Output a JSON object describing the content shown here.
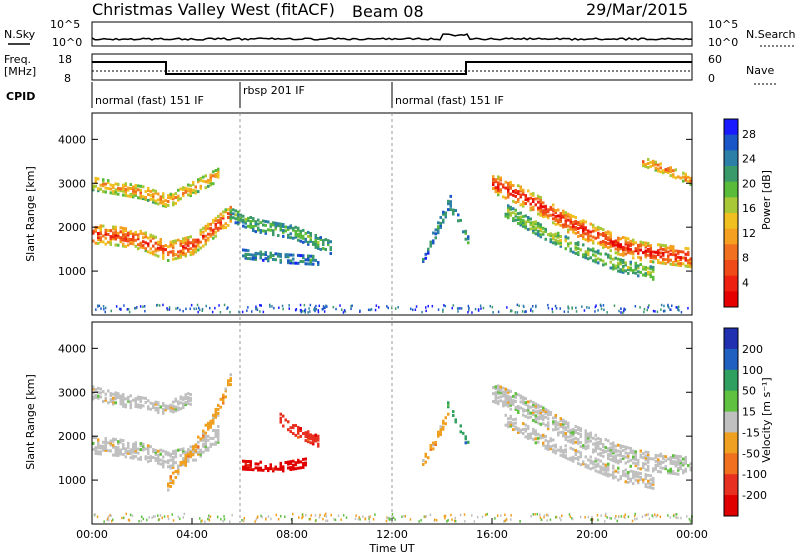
{
  "header": {
    "title": "Christmas Valley West (fitACF)",
    "beam": "Beam 08",
    "date": "29/Mar/2015"
  },
  "top_panels": {
    "noise": {
      "left_label": "N.Sky",
      "right_label": "N.Search",
      "ticks_left": [
        "10^5",
        "10^0"
      ],
      "ticks_right": [
        "10^5",
        "10^0"
      ]
    },
    "freq": {
      "left_label_1": "Freq.",
      "left_label_2": "[MHz]",
      "right_label": "Nave",
      "ticks_left": [
        "18",
        "8"
      ],
      "ticks_right": [
        "60",
        "0"
      ]
    },
    "cpid": {
      "label": "CPID",
      "segments": [
        {
          "label": "normal (fast) 151 IF",
          "start_h": 0.0
        },
        {
          "label": "rbsp 201 IF",
          "start_h": 6.0
        },
        {
          "label": "normal (fast) 151 IF",
          "start_h": 12.0
        }
      ]
    }
  },
  "chart_data": [
    {
      "type": "heatmap",
      "name": "power",
      "ylabel": "Slant Range [km]",
      "yticks": [
        1000,
        2000,
        3000,
        4000
      ],
      "ylim": [
        0,
        4600
      ],
      "xlim": [
        0,
        24
      ],
      "colorbar": {
        "label": "Power [dB]",
        "ticks": [
          "4",
          "8",
          "12",
          "16",
          "20",
          "24",
          "28"
        ],
        "colors": [
          "#1a1aff",
          "#1a56c8",
          "#2c7fa6",
          "#3a9a6a",
          "#5aba3a",
          "#a8c838",
          "#f0c020",
          "#f5a020",
          "#f07020",
          "#f04a18",
          "#ee2010",
          "#e60000"
        ]
      },
      "bands": [
        {
          "desc": "morning E/F band",
          "points": [
            [
              0,
              1850
            ],
            [
              1,
              1800
            ],
            [
              2,
              1700
            ],
            [
              3,
              1450
            ],
            [
              4,
              1600
            ],
            [
              5,
              2050
            ],
            [
              5.5,
              2300
            ]
          ],
          "width": 420,
          "level": 0.9
        },
        {
          "desc": "morning upper band",
          "points": [
            [
              0,
              3000
            ],
            [
              1,
              2900
            ],
            [
              2,
              2800
            ],
            [
              3,
              2600
            ],
            [
              4,
              2900
            ],
            [
              5,
              3200
            ]
          ],
          "width": 300,
          "level": 0.7
        },
        {
          "desc": "pre-noon patches",
          "points": [
            [
              5.5,
              2300
            ],
            [
              6.5,
              2050
            ],
            [
              8,
              1900
            ],
            [
              9.5,
              1550
            ]
          ],
          "width": 300,
          "level": 0.35
        },
        {
          "desc": "low patches",
          "points": [
            [
              6.0,
              1400
            ],
            [
              7.5,
              1300
            ],
            [
              9.0,
              1250
            ]
          ],
          "width": 200,
          "level": 0.25
        },
        {
          "desc": "afternoon rising A",
          "points": [
            [
              13.2,
              1300
            ],
            [
              13.8,
              2000
            ],
            [
              14.3,
              2600
            ]
          ],
          "width": 250,
          "level": 0.25
        },
        {
          "desc": "afternoon rising B",
          "points": [
            [
              14.2,
              2600
            ],
            [
              14.6,
              2200
            ],
            [
              15.0,
              1700
            ]
          ],
          "width": 200,
          "level": 0.3
        },
        {
          "desc": "evening main band",
          "points": [
            [
              16,
              3000
            ],
            [
              17,
              2750
            ],
            [
              18,
              2450
            ],
            [
              19,
              2100
            ],
            [
              20,
              1850
            ],
            [
              21,
              1600
            ],
            [
              22,
              1450
            ],
            [
              24,
              1300
            ]
          ],
          "width": 420,
          "level": 0.95
        },
        {
          "desc": "evening lower band",
          "points": [
            [
              16.5,
              2400
            ],
            [
              18,
              1900
            ],
            [
              19.5,
              1500
            ],
            [
              21,
              1150
            ],
            [
              22.5,
              950
            ]
          ],
          "width": 300,
          "level": 0.45
        },
        {
          "desc": "late upper band",
          "points": [
            [
              22.0,
              3500
            ],
            [
              23.0,
              3300
            ],
            [
              24,
              3050
            ]
          ],
          "width": 200,
          "level": 0.8
        }
      ]
    },
    {
      "type": "heatmap",
      "name": "velocity",
      "ylabel": "Slant Range [km]",
      "yticks": [
        1000,
        2000,
        3000,
        4000
      ],
      "ylim": [
        0,
        4600
      ],
      "xlim": [
        0,
        24
      ],
      "xticks": [
        "00:00",
        "04:00",
        "08:00",
        "12:00",
        "16:00",
        "20:00",
        "00:00"
      ],
      "xlabel": "Time UT",
      "colorbar": {
        "label": "Velocity [m s⁻¹]",
        "ticks": [
          "200",
          "100",
          "50",
          "15",
          "-15",
          "-50",
          "-100",
          "-200"
        ],
        "colors": [
          "#2030b0",
          "#2060c0",
          "#30a060",
          "#60c040",
          "#c0c0c0",
          "#f0a020",
          "#f07020",
          "#e83020",
          "#e00000"
        ]
      },
      "bands": [
        {
          "desc": "morning band",
          "points": [
            [
              0,
              1800
            ],
            [
              1,
              1750
            ],
            [
              2,
              1650
            ],
            [
              3,
              1450
            ],
            [
              4,
              1600
            ],
            [
              5,
              2050
            ]
          ],
          "width": 380,
          "level": 4
        },
        {
          "desc": "morning upper",
          "points": [
            [
              0,
              3000
            ],
            [
              1,
              2850
            ],
            [
              2,
              2750
            ],
            [
              3,
              2650
            ],
            [
              4,
              2900
            ]
          ],
          "width": 300,
          "level": 4
        },
        {
          "desc": "orange rising",
          "points": [
            [
              3.0,
              900
            ],
            [
              4.0,
              1700
            ],
            [
              5.0,
              2600
            ],
            [
              5.5,
              3300
            ]
          ],
          "width": 250,
          "level": 5
        },
        {
          "desc": "red patches",
          "points": [
            [
              6.0,
              1350
            ],
            [
              7.5,
              1300
            ],
            [
              8.5,
              1400
            ]
          ],
          "width": 200,
          "level": 8
        },
        {
          "desc": "red patches upper",
          "points": [
            [
              7.5,
              2400
            ],
            [
              8.2,
              2100
            ],
            [
              9.0,
              1900
            ]
          ],
          "width": 250,
          "level": 7
        },
        {
          "desc": "afternoon orange",
          "points": [
            [
              13.2,
              1400
            ],
            [
              13.8,
              2000
            ],
            [
              14.2,
              2500
            ]
          ],
          "width": 180,
          "level": 5
        },
        {
          "desc": "afternoon green",
          "points": [
            [
              14.2,
              2700
            ],
            [
              14.6,
              2300
            ],
            [
              15.0,
              1800
            ]
          ],
          "width": 150,
          "level": 2
        },
        {
          "desc": "evening grey main",
          "points": [
            [
              16,
              3000
            ],
            [
              17,
              2750
            ],
            [
              18,
              2450
            ],
            [
              19,
              2100
            ],
            [
              20,
              1850
            ],
            [
              21,
              1600
            ],
            [
              22,
              1450
            ],
            [
              24,
              1300
            ]
          ],
          "width": 420,
          "level": 4
        },
        {
          "desc": "evening grey lower",
          "points": [
            [
              16.5,
              2400
            ],
            [
              18,
              1900
            ],
            [
              19.5,
              1500
            ],
            [
              21,
              1150
            ],
            [
              22.5,
              950
            ]
          ],
          "width": 300,
          "level": 4
        }
      ]
    }
  ]
}
